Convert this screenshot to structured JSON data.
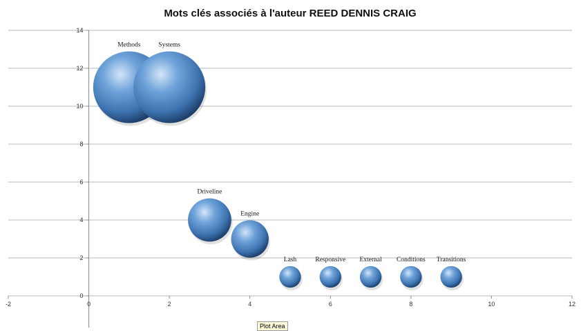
{
  "chart_data": {
    "type": "bubble",
    "title": "Mots clés associés à l'auteur REED DENNIS CRAIG",
    "xlim": [
      -2,
      12
    ],
    "ylim": [
      0,
      14
    ],
    "x_ticks": [
      "-2",
      "0",
      "2",
      "4",
      "6",
      "8",
      "10",
      "12"
    ],
    "y_ticks": [
      "0",
      "2",
      "4",
      "6",
      "8",
      "10",
      "12",
      "14"
    ],
    "grid": "horizontal",
    "bubble_color": "#4f86c4",
    "points": [
      {
        "label": "Methods",
        "x": 1,
        "y": 11,
        "size": 11
      },
      {
        "label": "Systems",
        "x": 2,
        "y": 11,
        "size": 11
      },
      {
        "label": "Driveline",
        "x": 3,
        "y": 4,
        "size": 4
      },
      {
        "label": "Engine",
        "x": 4,
        "y": 3,
        "size": 3
      },
      {
        "label": "Lash",
        "x": 5,
        "y": 1,
        "size": 1
      },
      {
        "label": "Responsive",
        "x": 6,
        "y": 1,
        "size": 1
      },
      {
        "label": "External",
        "x": 7,
        "y": 1,
        "size": 1
      },
      {
        "label": "Conditions",
        "x": 8,
        "y": 1,
        "size": 1
      },
      {
        "label": "Transitions",
        "x": 9,
        "y": 1,
        "size": 1
      }
    ]
  },
  "tooltip": "Plot Area"
}
